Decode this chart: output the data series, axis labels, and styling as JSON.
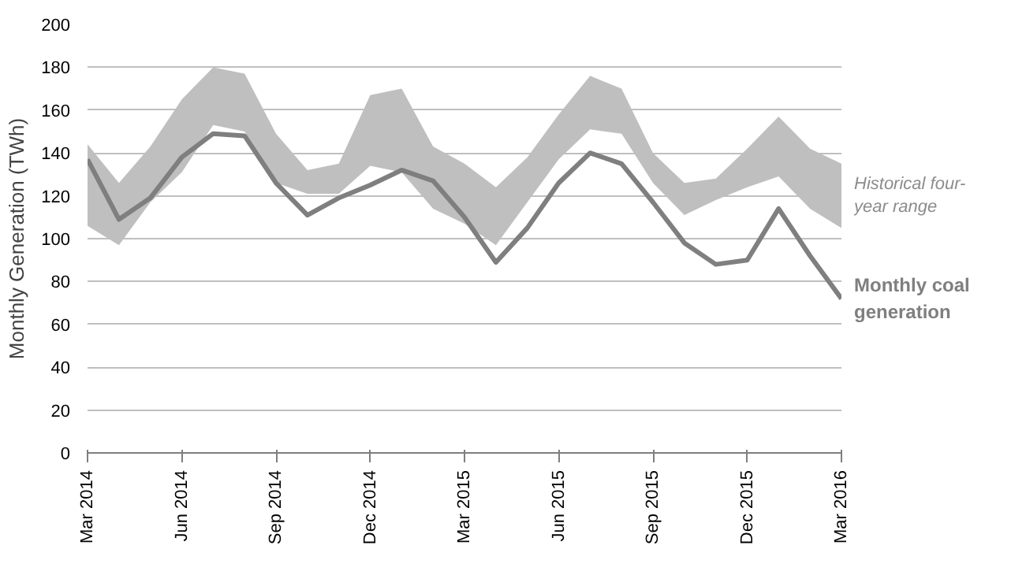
{
  "chart_data": {
    "type": "line",
    "ylabel": "Monthly Generation (TWh)",
    "x": [
      "2014-03",
      "2014-04",
      "2014-05",
      "2014-06",
      "2014-07",
      "2014-08",
      "2014-09",
      "2014-10",
      "2014-11",
      "2014-12",
      "2015-01",
      "2015-02",
      "2015-03",
      "2015-04",
      "2015-05",
      "2015-06",
      "2015-07",
      "2015-08",
      "2015-09",
      "2015-10",
      "2015-11",
      "2015-12",
      "2016-01",
      "2016-02",
      "2016-03"
    ],
    "series": [
      {
        "name": "Monthly coal generation",
        "color": "#7f7f7f",
        "values": [
          137,
          109,
          119,
          138,
          149,
          148,
          126,
          111,
          119,
          125,
          132,
          127,
          110,
          89,
          105,
          126,
          140,
          135,
          117,
          98,
          88,
          90,
          114,
          92,
          72
        ],
        "lower": [
          106,
          97,
          117,
          131,
          153,
          150,
          126,
          121,
          121,
          134,
          131,
          114,
          107,
          97,
          117,
          137,
          151,
          149,
          126,
          111,
          118,
          124,
          129,
          114,
          105
        ],
        "upper": [
          144,
          126,
          143,
          165,
          180,
          177,
          149,
          132,
          135,
          167,
          170,
          143,
          135,
          124,
          138,
          158,
          176,
          170,
          140,
          126,
          128,
          142,
          157,
          142,
          135
        ]
      }
    ],
    "annotations": [
      "Historical four-year range"
    ],
    "xlim": [
      "2014-03",
      "2016-03"
    ],
    "xticks": [
      {
        "value": "2014-03",
        "label": "Mar 2014"
      },
      {
        "value": "2014-06",
        "label": "Jun 2014"
      },
      {
        "value": "2014-09",
        "label": "Sep 2014"
      },
      {
        "value": "2014-12",
        "label": "Dec 2014"
      },
      {
        "value": "2015-03",
        "label": "Mar 2015"
      },
      {
        "value": "2015-06",
        "label": "Jun 2015"
      },
      {
        "value": "2015-09",
        "label": "Sep 2015"
      },
      {
        "value": "2015-12",
        "label": "Dec 2015"
      },
      {
        "value": "2016-03",
        "label": "Mar 2016"
      }
    ],
    "ylim": [
      0,
      200
    ],
    "yticks": [
      0,
      20,
      40,
      60,
      80,
      100,
      120,
      140,
      160,
      180,
      200
    ],
    "grid": "y",
    "legend": false,
    "marker": "none",
    "line_style": "solid"
  }
}
